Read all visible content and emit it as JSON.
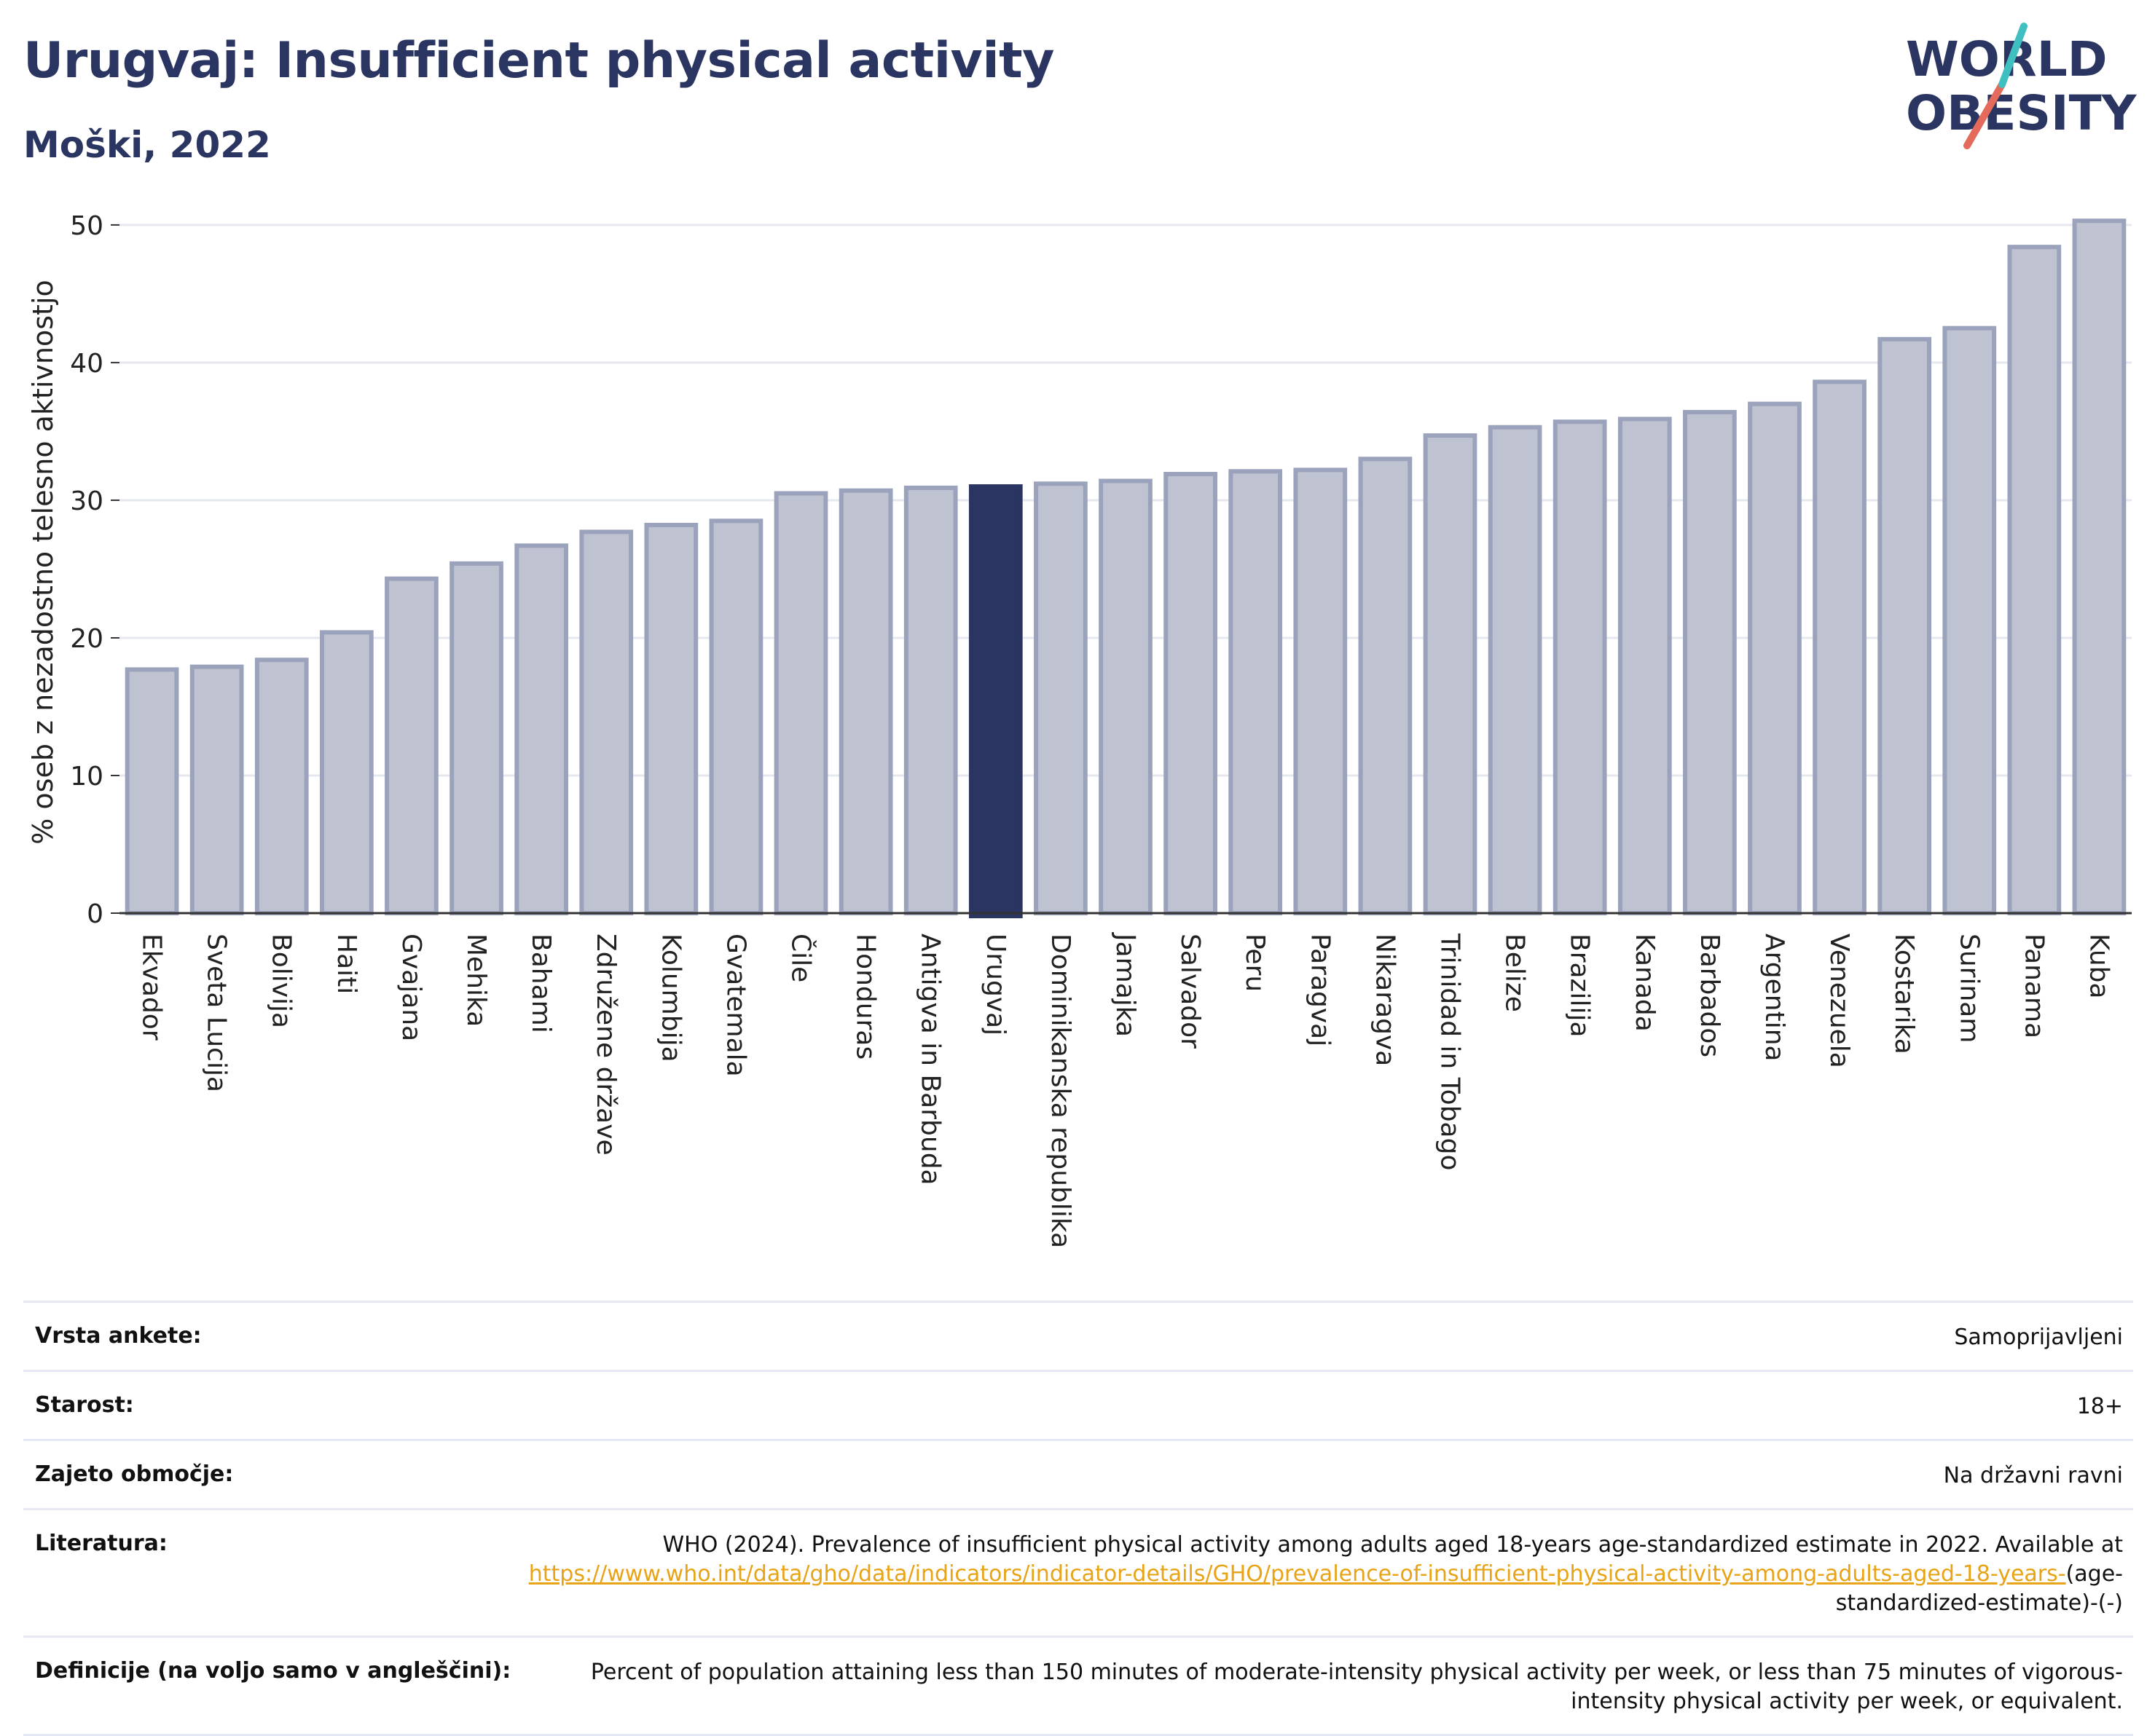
{
  "header": {
    "title": "Urugvaj: Insufficient physical activity",
    "subtitle": "Moški, 2022",
    "logo_text_1": "WORLD",
    "logo_text_2": "OBESITY"
  },
  "chart_data": {
    "type": "bar",
    "ylabel": "% oseb z nezadostno telesno aktivnostjo",
    "ylim": [
      0,
      51
    ],
    "yticks": [
      0,
      10,
      20,
      30,
      40,
      50
    ],
    "grid": true,
    "highlight": "Urugvaj",
    "colors": {
      "bar": "#bfc3d1",
      "bar_edge": "#9ba2bb",
      "highlight": "#2b3561",
      "axis": "#333333",
      "grid": "#e6e8f0"
    },
    "categories": [
      "Ekvador",
      "Sveta Lucija",
      "Bolivija",
      "Haiti",
      "Gvajana",
      "Mehika",
      "Bahami",
      "Združene države",
      "Kolumbija",
      "Gvatemala",
      "Čile",
      "Honduras",
      "Antigva in Barbuda",
      "Urugvaj",
      "Dominikanska republika",
      "Jamajka",
      "Salvador",
      "Peru",
      "Paragvaj",
      "Nikaragva",
      "Trinidad in Tobago",
      "Belize",
      "Brazilija",
      "Kanada",
      "Barbados",
      "Argentina",
      "Venezuela",
      "Kostarika",
      "Surinam",
      "Panama",
      "Kuba"
    ],
    "values": [
      17.7,
      17.9,
      18.4,
      20.4,
      24.3,
      25.4,
      26.7,
      27.7,
      28.2,
      28.5,
      30.5,
      30.7,
      30.9,
      31.0,
      31.2,
      31.4,
      31.9,
      32.1,
      32.2,
      33.0,
      34.7,
      35.3,
      35.7,
      35.9,
      36.4,
      37.0,
      38.6,
      41.7,
      42.5,
      48.4,
      50.3
    ]
  },
  "info": {
    "survey_label": "Vrsta ankete:",
    "survey_value": "Samoprijavljeni",
    "age_label": "Starost:",
    "age_value": "18+",
    "coverage_label": "Zajeto območje:",
    "coverage_value": "Na državni ravni",
    "reference_label": "Literatura:",
    "reference_text": "WHO (2024). Prevalence of insufficient physical activity among adults aged 18-years age-standardized estimate in 2022. Available at ",
    "reference_link": "https://www.who.int/data/gho/data/indicators/indicator-details/GHO/prevalence-of-insufficient-physical-activity-among-adults-aged-18-years-",
    "reference_tail": "(age-standardized-estimate)-(-)",
    "definition_label": "Definicije (na voljo samo v angleščini):",
    "definition_value": "Percent of population attaining less than 150 minutes of moderate-intensity physical activity per week, or less than 75 minutes of vigorous-intensity physical activity per week, or equivalent."
  }
}
